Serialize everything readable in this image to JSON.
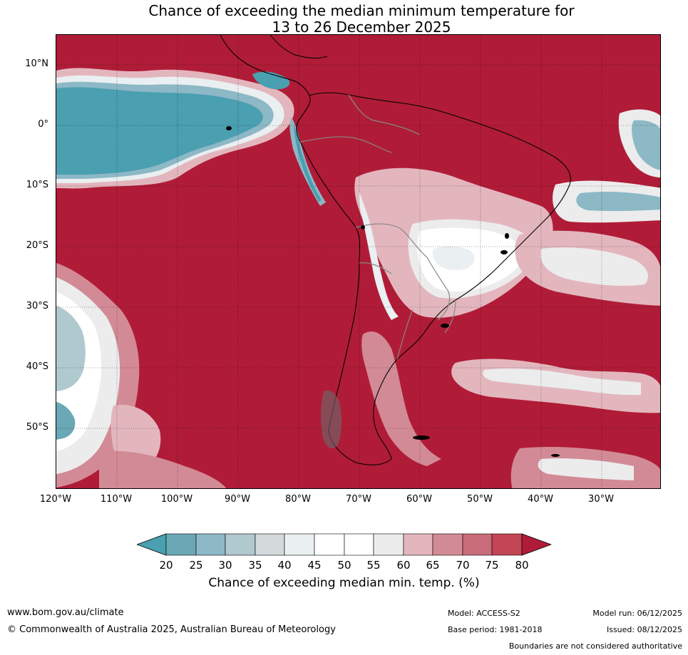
{
  "title_line1": "Chance of exceeding the median minimum temperature for",
  "title_line2": "13 to 26 December 2025",
  "lat_labels": [
    "10°N",
    "0°",
    "10°S",
    "20°S",
    "30°S",
    "40°S",
    "50°S"
  ],
  "lon_labels": [
    "120°W",
    "110°W",
    "100°W",
    "90°W",
    "80°W",
    "70°W",
    "60°W",
    "50°W",
    "40°W",
    "30°W"
  ],
  "legend": {
    "ticks": [
      "20",
      "25",
      "30",
      "35",
      "40",
      "45",
      "50",
      "55",
      "60",
      "65",
      "70",
      "75",
      "80"
    ],
    "colors": [
      "#4a9fb0",
      "#6aa8b6",
      "#8db8c6",
      "#b0c9cf",
      "#d4d9db",
      "#eaeff1",
      "#ffffff",
      "#ffffff",
      "#ececed",
      "#e3b6be",
      "#d28b96",
      "#c86c79",
      "#c24656",
      "#b01c37"
    ],
    "title": "Chance of exceeding median min. temp. (%)"
  },
  "footer": {
    "url": "www.bom.gov.au/climate",
    "copyright": "© Commonwealth of Australia 2025, Australian Bureau of Meteorology",
    "model": "Model: ACCESS-S2",
    "base_period": "Base period: 1981-2018",
    "model_run": "Model run: 06/12/2025",
    "issued": "Issued: 08/12/2025",
    "boundaries_note": "Boundaries are not considered authoritative"
  }
}
